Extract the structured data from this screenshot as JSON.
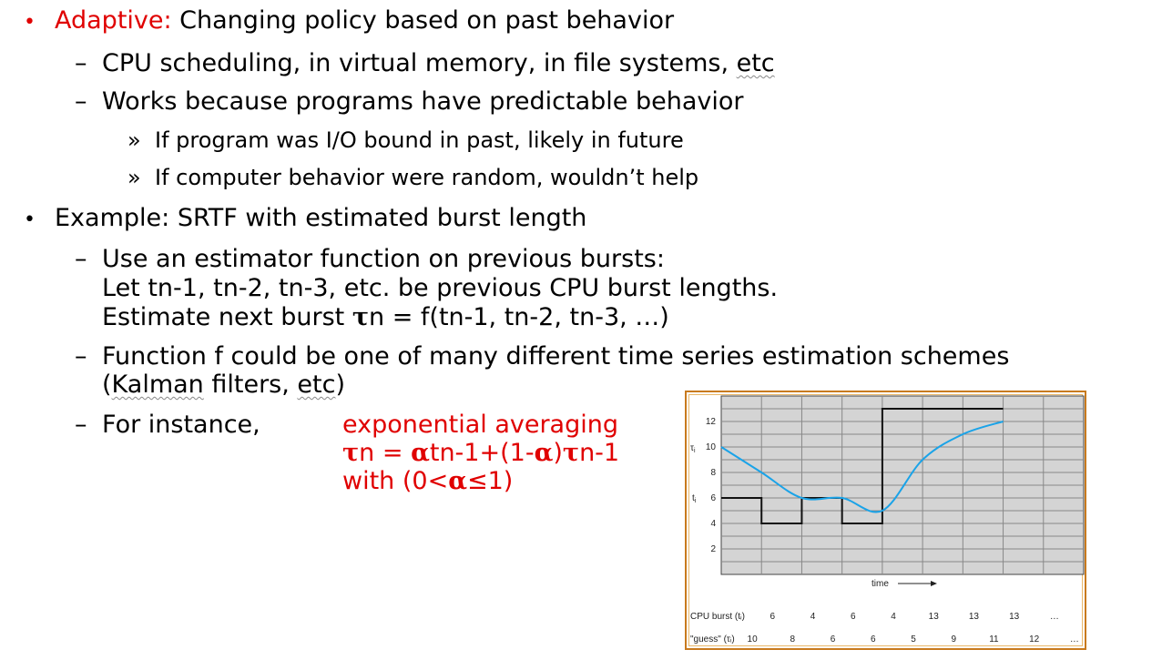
{
  "bullets": [
    {
      "marker": "•",
      "red_prefix": "Adaptive:",
      "text": " Changing policy based on past behavior"
    },
    {
      "marker": "•",
      "text": "Example: SRTF with estimated burst length"
    }
  ],
  "sub": {
    "dash": "–",
    "raquo": "»",
    "s1_pre": "CPU scheduling, in virtual memory, in file systems, ",
    "s1_etc": "etc",
    "s2": "Works because programs have predictable behavior",
    "s2a": "If program was I/O bound in past, likely in future",
    "s2b": "If computer behavior were random, wouldn’t help",
    "e1_l1": "Use an estimator function on previous bursts:",
    "e1_l2": "Let tn-1, tn-2, tn-3, etc. be previous CPU burst lengths.",
    "e1_l3_pre": "Estimate next burst ",
    "e1_tau": "τ",
    "e1_l3_post": "n = f(tn-1, tn-2, tn-3, …)",
    "e2_l1": "Function f could be one of many different time series estimation schemes",
    "e2_l2_open": "(",
    "e2_kalman": "Kalman",
    "e2_mid": " filters, ",
    "e2_etc": "etc",
    "e2_close": ")",
    "e3": "For instance,"
  },
  "formula": {
    "l1": "exponential averaging",
    "l2_tau": "τ",
    "l2_a": "n = ",
    "l2_alpha": "α",
    "l2_b": "tn-1+(1-",
    "l2_alpha2": "α",
    "l2_c": ")",
    "l2_tau2": "τ",
    "l2_d": "n-1",
    "l3_a": "with (0<",
    "l3_alpha": "α",
    "l3_b": "≤1)"
  },
  "chart_data": {
    "type": "line",
    "xlabel": "time",
    "y_ticks": [
      2,
      4,
      6,
      8,
      10,
      12
    ],
    "ylim": [
      0,
      14
    ],
    "grid": true,
    "y_marks": {
      "tau": "τ",
      "tau_sub": "i",
      "t": "t",
      "t_sub": "i"
    },
    "colors": {
      "burst": "#111111",
      "guess": "#1aa3e8",
      "plot_bg": "#d4d4d4"
    },
    "series": [
      {
        "values": [
          6,
          4,
          6,
          4,
          13,
          13,
          13
        ]
      },
      {
        "values": [
          10,
          8,
          6,
          6,
          5,
          9,
          11,
          12
        ]
      }
    ],
    "table": {
      "row1_label": "CPU burst (tᵢ)",
      "row1": [
        "6",
        "4",
        "6",
        "4",
        "13",
        "13",
        "13",
        "…"
      ],
      "row2_label": "\"guess\" (τᵢ)",
      "row2": [
        "10",
        "8",
        "6",
        "6",
        "5",
        "9",
        "11",
        "12",
        "…"
      ]
    }
  }
}
